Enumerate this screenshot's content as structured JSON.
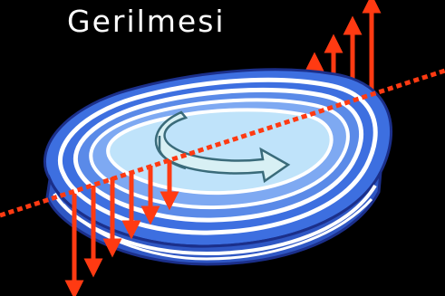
{
  "title": "Gerilmesi",
  "colors": {
    "background": "#000000",
    "disc_outer": "#3d6fe0",
    "disc_mid": "#6f9ef0",
    "disc_center": "#bfe3fa",
    "disc_lines": "#ffffff",
    "disc_outline": "#1b2f8a",
    "arrows": "#ff3a12",
    "axis": "#ff3a12",
    "rotation_arrow_fill": "#d8f0f4",
    "rotation_arrow_stroke": "#3a6b7a"
  },
  "icons": {
    "rotation": "curved-rotation-arrow-icon",
    "force": "vertical-force-arrow-icon"
  }
}
